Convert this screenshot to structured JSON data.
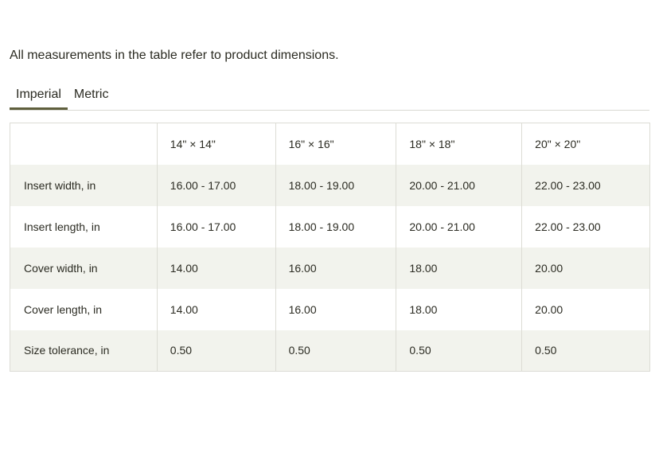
{
  "intro_text": "All measurements in the table refer to product dimensions.",
  "tabs": [
    {
      "label": "Imperial",
      "active": true
    },
    {
      "label": "Metric",
      "active": false
    }
  ],
  "table": {
    "corner": "",
    "columns": [
      "14\" × 14\"",
      "16\" × 16\"",
      "18\" × 18\"",
      "20\" × 20\""
    ],
    "rows": [
      {
        "label": "Insert width, in",
        "cells": [
          "16.00 - 17.00",
          "18.00 - 19.00",
          "20.00 - 21.00",
          "22.00 - 23.00"
        ]
      },
      {
        "label": "Insert length, in",
        "cells": [
          "16.00 - 17.00",
          "18.00 - 19.00",
          "20.00 - 21.00",
          "22.00 - 23.00"
        ]
      },
      {
        "label": "Cover width, in",
        "cells": [
          "14.00",
          "16.00",
          "18.00",
          "20.00"
        ]
      },
      {
        "label": "Cover length, in",
        "cells": [
          "14.00",
          "16.00",
          "18.00",
          "20.00"
        ]
      },
      {
        "label": "Size tolerance, in",
        "cells": [
          "0.50",
          "0.50",
          "0.50",
          "0.50"
        ]
      }
    ]
  },
  "colors": {
    "text": "#2b2b22",
    "active_tab_underline": "#5f5f3d",
    "stripe": "#f2f3ed",
    "border": "#dcdcd5"
  }
}
